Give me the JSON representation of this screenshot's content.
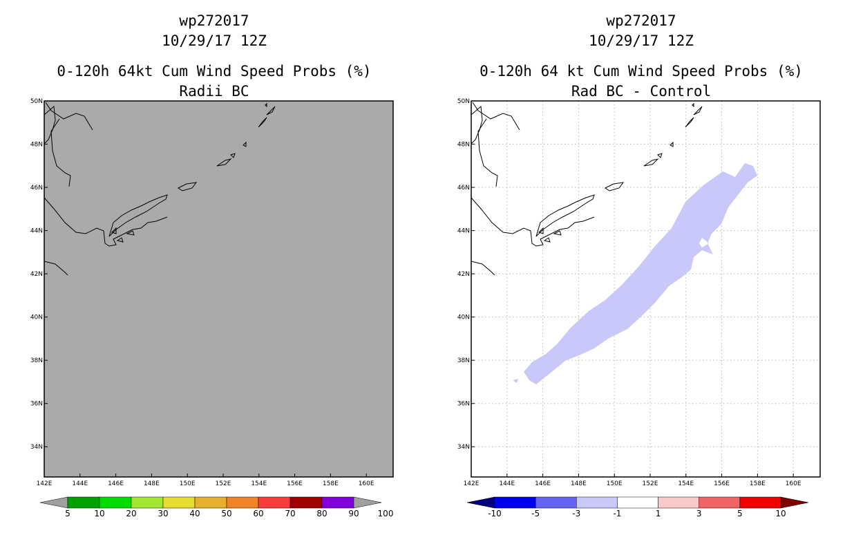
{
  "chart_data": [
    {
      "type": "heatmap",
      "panel": "left",
      "title_lines": [
        "wp272017",
        "10/29/17 12Z"
      ],
      "subtitle_lines": [
        "0-120h 64kt Cum Wind Speed Probs (%)",
        "Radii BC"
      ],
      "lon_ticks": [
        "142E",
        "144E",
        "146E",
        "148E",
        "150E",
        "152E",
        "154E",
        "156E",
        "158E",
        "160E"
      ],
      "lat_ticks": [
        "50N",
        "48N",
        "46N",
        "44N",
        "42N",
        "40N",
        "38N",
        "36N",
        "34N"
      ],
      "lon_range": [
        142,
        161.5
      ],
      "lat_range": [
        32.6,
        50
      ],
      "field_note": "all values below 5%",
      "grid": false,
      "colorbar": {
        "labels": [
          "5",
          "10",
          "20",
          "30",
          "40",
          "50",
          "60",
          "70",
          "80",
          "90",
          "100"
        ],
        "colors": [
          "#a0a0a0",
          "#00a000",
          "#00dc00",
          "#a0e632",
          "#e6dc32",
          "#e6af2d",
          "#f08228",
          "#fa3c3c",
          "#a00000",
          "#8200dc",
          "#a0a0a0"
        ]
      },
      "background_color": "#aaaaaa"
    },
    {
      "type": "heatmap",
      "panel": "right",
      "title_lines": [
        "wp272017",
        "10/29/17 12Z"
      ],
      "subtitle_lines": [
        "0-120h 64 kt Cum Wind Speed Probs (%)",
        "Rad BC - Control"
      ],
      "lon_ticks": [
        "142E",
        "144E",
        "146E",
        "148E",
        "150E",
        "152E",
        "154E",
        "156E",
        "158E",
        "160E"
      ],
      "lat_ticks": [
        "50N",
        "48N",
        "46N",
        "44N",
        "42N",
        "40N",
        "38N",
        "36N",
        "34N"
      ],
      "lon_range": [
        142,
        161.5
      ],
      "lat_range": [
        32.6,
        50
      ],
      "grid": true,
      "difference_region": {
        "category": "-3 to -1",
        "color": "#c8c8fa",
        "from": {
          "lon": 145.0,
          "lat": 37.1
        },
        "to": {
          "lon": 158.2,
          "lat": 47.0
        }
      },
      "colorbar": {
        "labels": [
          "-10",
          "-5",
          "-3",
          "-1",
          "1",
          "3",
          "5",
          "10"
        ],
        "colors": [
          "#000080",
          "#0000f0",
          "#6464f0",
          "#c8c8fa",
          "#ffffff",
          "#fac8c8",
          "#f06464",
          "#f00000",
          "#800000"
        ]
      }
    }
  ]
}
